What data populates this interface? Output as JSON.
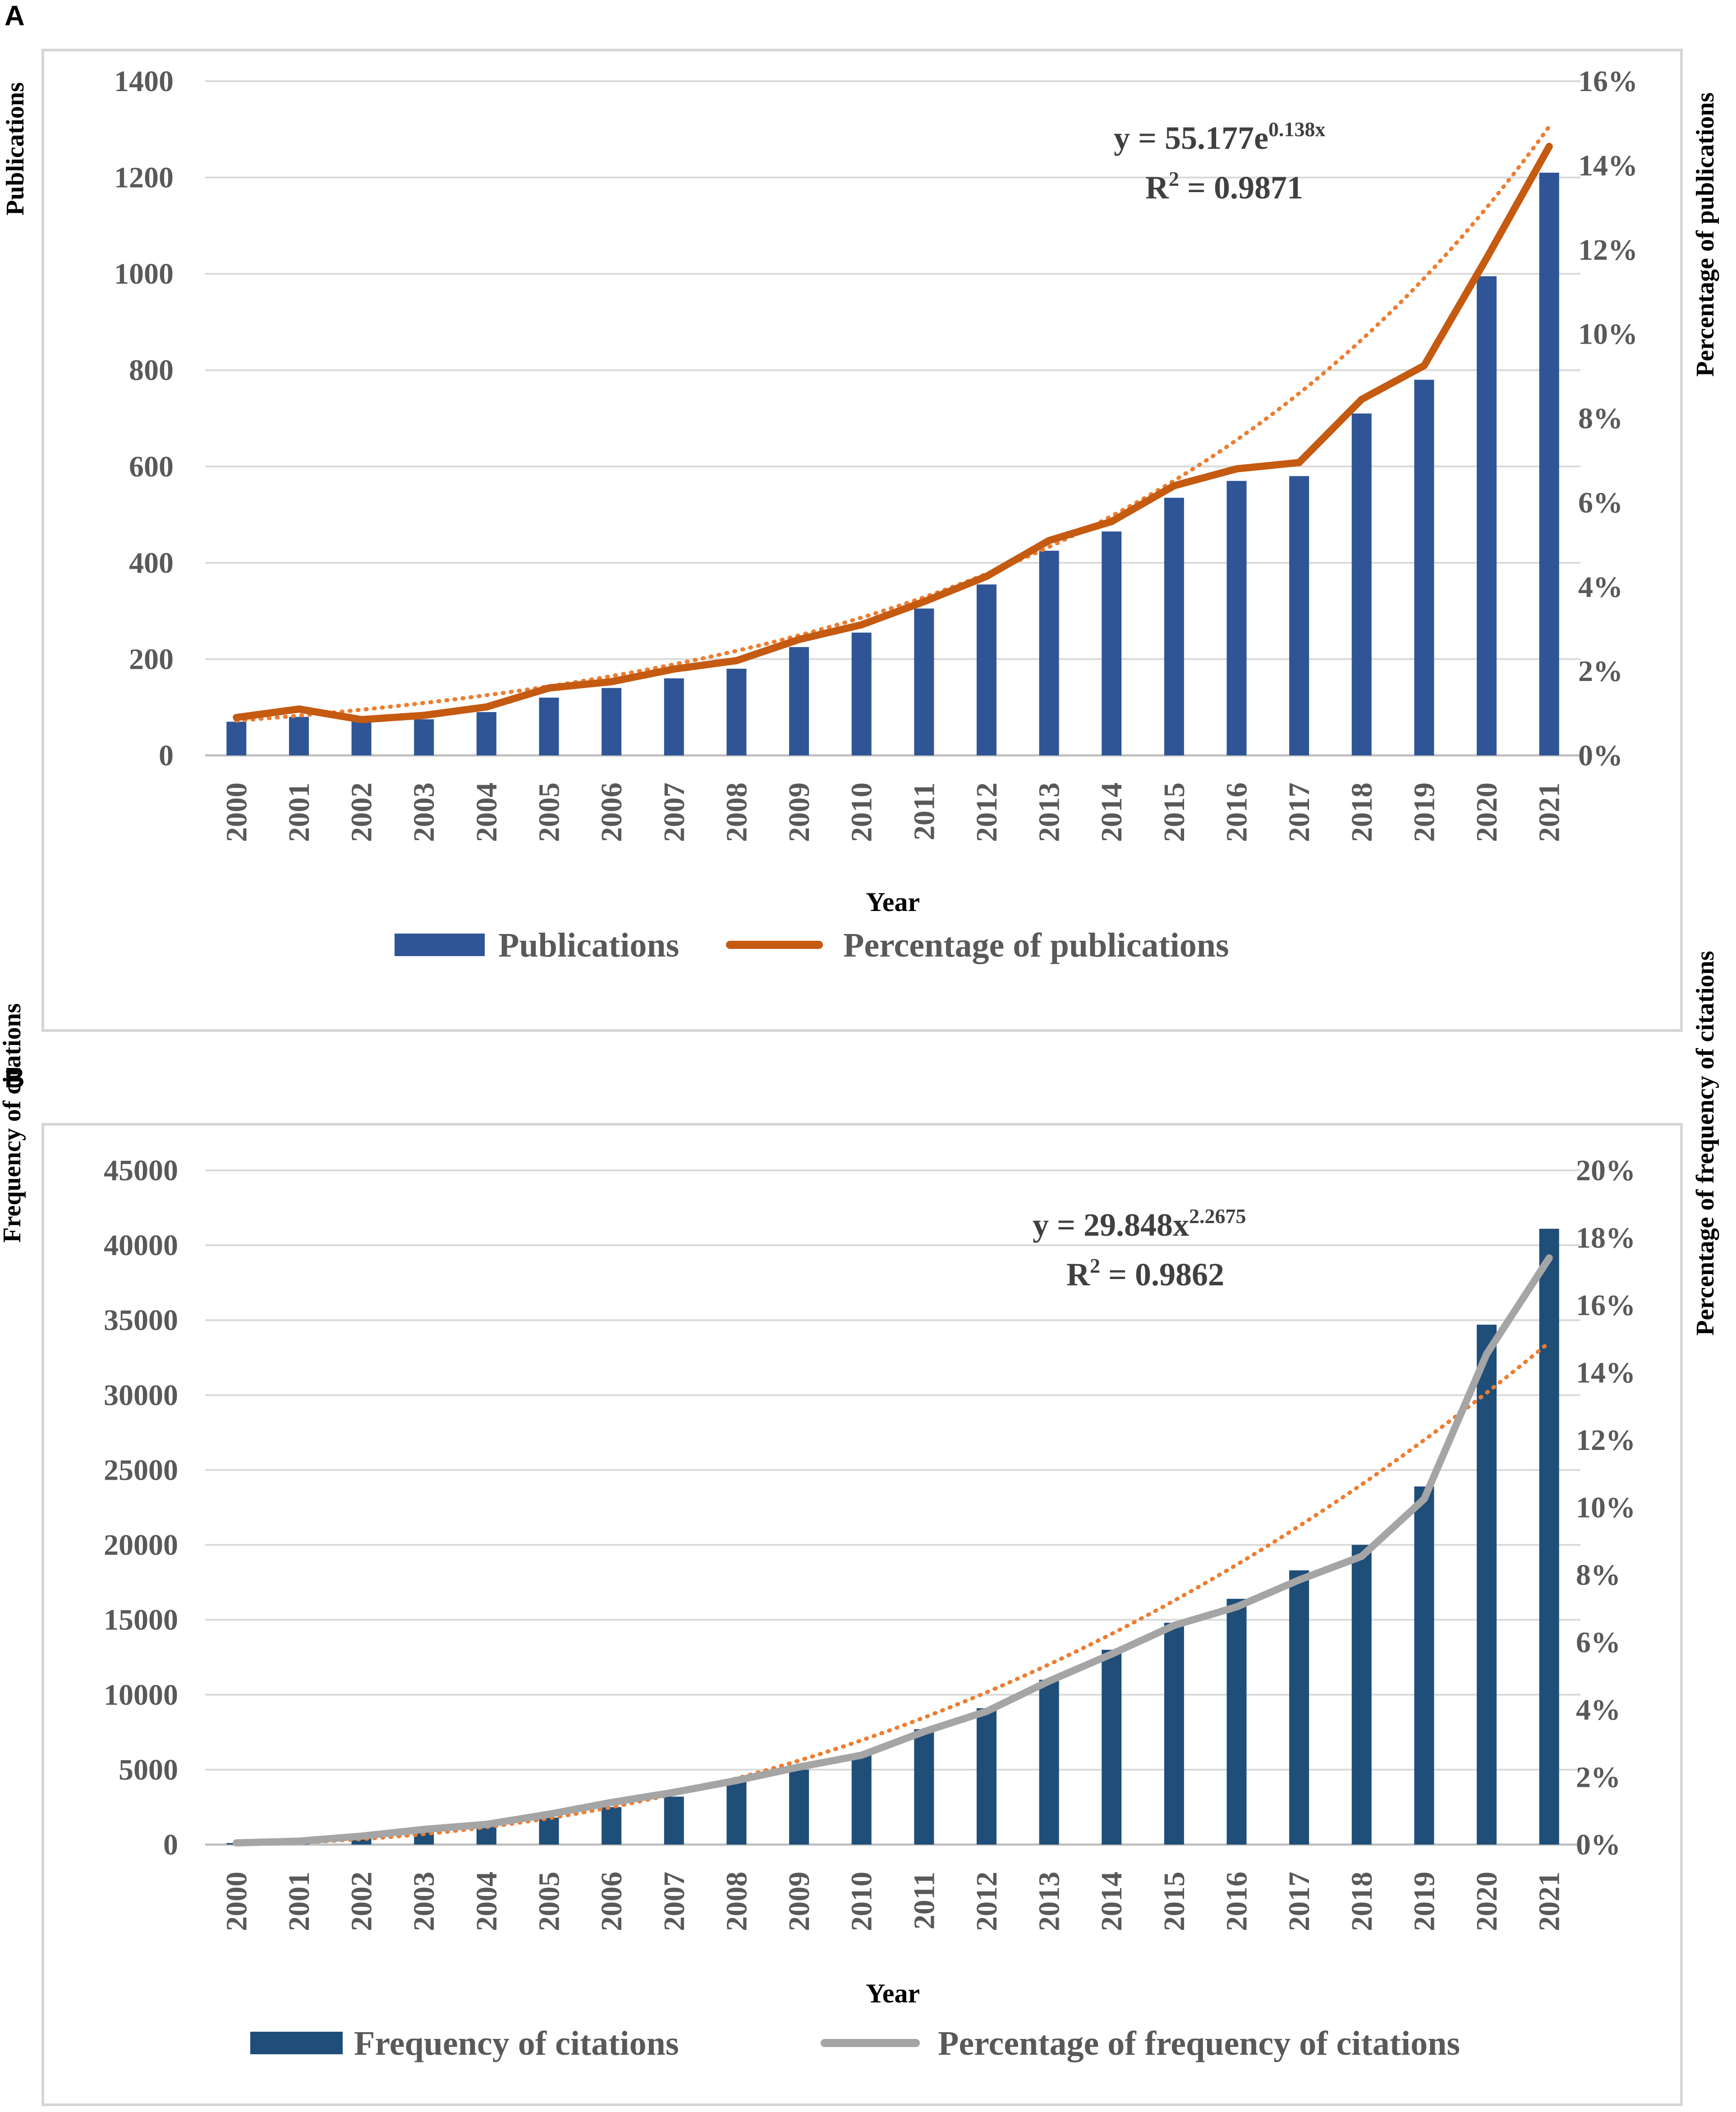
{
  "panels": {
    "a_label": "A",
    "b_label": "B"
  },
  "chart_data": [
    {
      "type": "bar",
      "id": "A",
      "categories": [
        "2000",
        "2001",
        "2002",
        "2003",
        "2004",
        "2005",
        "2006",
        "2007",
        "2008",
        "2009",
        "2010",
        "2011",
        "2012",
        "2013",
        "2014",
        "2015",
        "2016",
        "2017",
        "2018",
        "2019",
        "2020",
        "2021"
      ],
      "series": [
        {
          "name": "Publications",
          "kind": "bar",
          "axis": "left",
          "color": "#2f5597",
          "values": [
            70,
            80,
            70,
            75,
            90,
            120,
            140,
            160,
            180,
            225,
            255,
            305,
            355,
            425,
            465,
            535,
            570,
            580,
            710,
            780,
            995,
            1210
          ]
        },
        {
          "name": "Percentage of publications",
          "kind": "line",
          "axis": "right",
          "color": "#c55a11",
          "values": [
            0.9,
            1.1,
            0.85,
            0.95,
            1.15,
            1.6,
            1.75,
            2.05,
            2.25,
            2.75,
            3.1,
            3.65,
            4.25,
            5.1,
            5.55,
            6.4,
            6.8,
            6.95,
            8.45,
            9.25,
            11.8,
            14.45
          ]
        }
      ],
      "trendline": {
        "color": "#ed7d31",
        "axis": "right",
        "type": "exponential",
        "a": 0.7167,
        "b": 0.138,
        "equation_main": "y = 55.177e",
        "equation_sup": "0.138x",
        "r2_main": "R",
        "r2_sup": "2",
        "r2_value": " = 0.9871"
      },
      "left_axis": {
        "title": "Publications",
        "ylim": [
          0,
          1400
        ],
        "ticks": [
          "0",
          "200",
          "400",
          "600",
          "800",
          "1000",
          "1200",
          "1400"
        ],
        "tick_values": [
          0,
          200,
          400,
          600,
          800,
          1000,
          1200,
          1400
        ]
      },
      "right_axis": {
        "title": "Percentage of publications",
        "ylim": [
          0,
          16
        ],
        "ticks": [
          "0%",
          "2%",
          "4%",
          "6%",
          "8%",
          "10%",
          "12%",
          "14%",
          "16%"
        ],
        "tick_values": [
          0,
          2,
          4,
          6,
          8,
          10,
          12,
          14,
          16
        ]
      },
      "xlabel": "Year",
      "grid": true,
      "legend": {
        "placement": "bottom",
        "items": [
          "Publications",
          "Percentage of publications"
        ]
      }
    },
    {
      "type": "bar",
      "id": "B",
      "categories": [
        "2000",
        "2001",
        "2002",
        "2003",
        "2004",
        "2005",
        "2006",
        "2007",
        "2008",
        "2009",
        "2010",
        "2011",
        "2012",
        "2013",
        "2014",
        "2015",
        "2016",
        "2017",
        "2018",
        "2019",
        "2020",
        "2021"
      ],
      "series": [
        {
          "name": "Frequency of citations",
          "kind": "bar",
          "axis": "left",
          "color": "#1f4e79",
          "values": [
            100,
            250,
            450,
            900,
            1200,
            1800,
            2500,
            3200,
            4200,
            5000,
            6000,
            7700,
            9100,
            11000,
            13000,
            14800,
            16400,
            18300,
            20000,
            23900,
            34700,
            41100
          ]
        },
        {
          "name": "Percentage of frequency of citations",
          "kind": "line",
          "axis": "right",
          "color": "#a5a5a5",
          "values": [
            0.05,
            0.1,
            0.25,
            0.45,
            0.6,
            0.9,
            1.25,
            1.55,
            1.9,
            2.3,
            2.65,
            3.35,
            3.95,
            4.85,
            5.65,
            6.5,
            7.05,
            7.85,
            8.55,
            10.25,
            14.55,
            17.4
          ]
        }
      ],
      "trendline": {
        "color": "#ed7d31",
        "axis": "right",
        "type": "power",
        "a": 0.01346,
        "b": 2.2675,
        "equation_main": "y = 29.848x",
        "equation_sup": "2.2675",
        "r2_main": "R",
        "r2_sup": "2",
        "r2_value": " = 0.9862"
      },
      "left_axis": {
        "title": "Frequency of citations",
        "ylim": [
          0,
          45000
        ],
        "ticks": [
          "0",
          "5000",
          "10000",
          "15000",
          "20000",
          "25000",
          "30000",
          "35000",
          "40000",
          "45000"
        ],
        "tick_values": [
          0,
          5000,
          10000,
          15000,
          20000,
          25000,
          30000,
          35000,
          40000,
          45000
        ]
      },
      "right_axis": {
        "title": "Percentage of frequency of citations",
        "ylim": [
          0,
          20
        ],
        "ticks": [
          "0%",
          "2%",
          "4%",
          "6%",
          "8%",
          "10%",
          "12%",
          "14%",
          "16%",
          "18%",
          "20%"
        ],
        "tick_values": [
          0,
          2,
          4,
          6,
          8,
          10,
          12,
          14,
          16,
          18,
          20
        ]
      },
      "xlabel": "Year",
      "grid": true,
      "legend": {
        "placement": "bottom",
        "items": [
          "Frequency of citations",
          "Percentage of frequency of citations"
        ]
      }
    }
  ]
}
